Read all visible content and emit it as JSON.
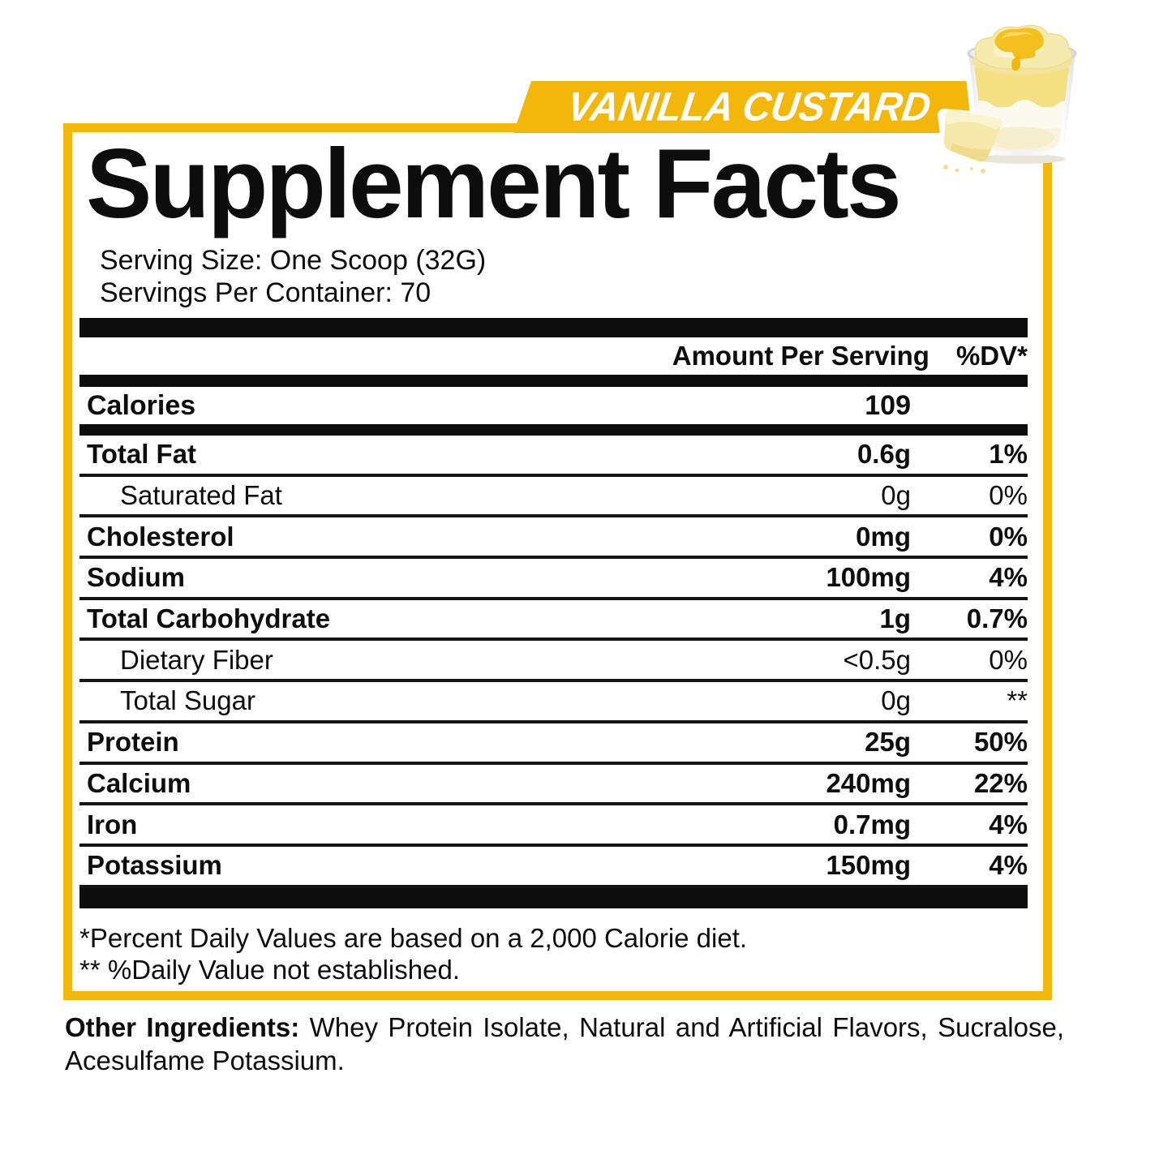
{
  "flavor_banner": {
    "label": "VANILLA CUSTARD"
  },
  "colors": {
    "accent_yellow": "#F3B70C",
    "text_black": "#0D0D0D",
    "banner_text": "#FFFFFF"
  },
  "supplement_facts": {
    "title": "Supplement Facts",
    "serving_size": "Serving Size: One Scoop (32G)",
    "servings_per_container": "Servings Per Container: 70",
    "header": {
      "amount": "Amount Per Serving",
      "dv": "%DV*"
    },
    "calories": {
      "name": "Calories",
      "amount": "109"
    },
    "nutrients": [
      {
        "name": "Total Fat",
        "amount": "0.6g",
        "dv": "1%",
        "bold": true,
        "indent": false
      },
      {
        "name": "Saturated Fat",
        "amount": "0g",
        "dv": "0%",
        "bold": false,
        "indent": true
      },
      {
        "name": "Cholesterol",
        "amount": "0mg",
        "dv": "0%",
        "bold": true,
        "indent": false
      },
      {
        "name": "Sodium",
        "amount": "100mg",
        "dv": "4%",
        "bold": true,
        "indent": false
      },
      {
        "name": "Total Carbohydrate",
        "amount": "1g",
        "dv": "0.7%",
        "bold": true,
        "indent": false
      },
      {
        "name": "Dietary Fiber",
        "amount": "<0.5g",
        "dv": "0%",
        "bold": false,
        "indent": true
      },
      {
        "name": "Total Sugar",
        "amount": "0g",
        "dv": "**",
        "bold": false,
        "indent": true
      },
      {
        "name": "Protein",
        "amount": "25g",
        "dv": "50%",
        "bold": true,
        "indent": false
      },
      {
        "name": "Calcium",
        "amount": "240mg",
        "dv": "22%",
        "bold": true,
        "indent": false
      },
      {
        "name": "Iron",
        "amount": "0.7mg",
        "dv": "4%",
        "bold": true,
        "indent": false
      },
      {
        "name": "Potassium",
        "amount": "150mg",
        "dv": "4%",
        "bold": true,
        "indent": false
      }
    ],
    "footnotes": [
      "*Percent Daily Values are based on a 2,000 Calorie diet.",
      "** %Daily Value not established."
    ]
  },
  "other_ingredients": {
    "label": "Other Ingredients:",
    "text": " Whey Protein Isolate, Natural and Artificial Flavors, Sucralose, Acesulfame Potassium."
  },
  "illustration": {
    "name": "vanilla-custard-glass"
  }
}
